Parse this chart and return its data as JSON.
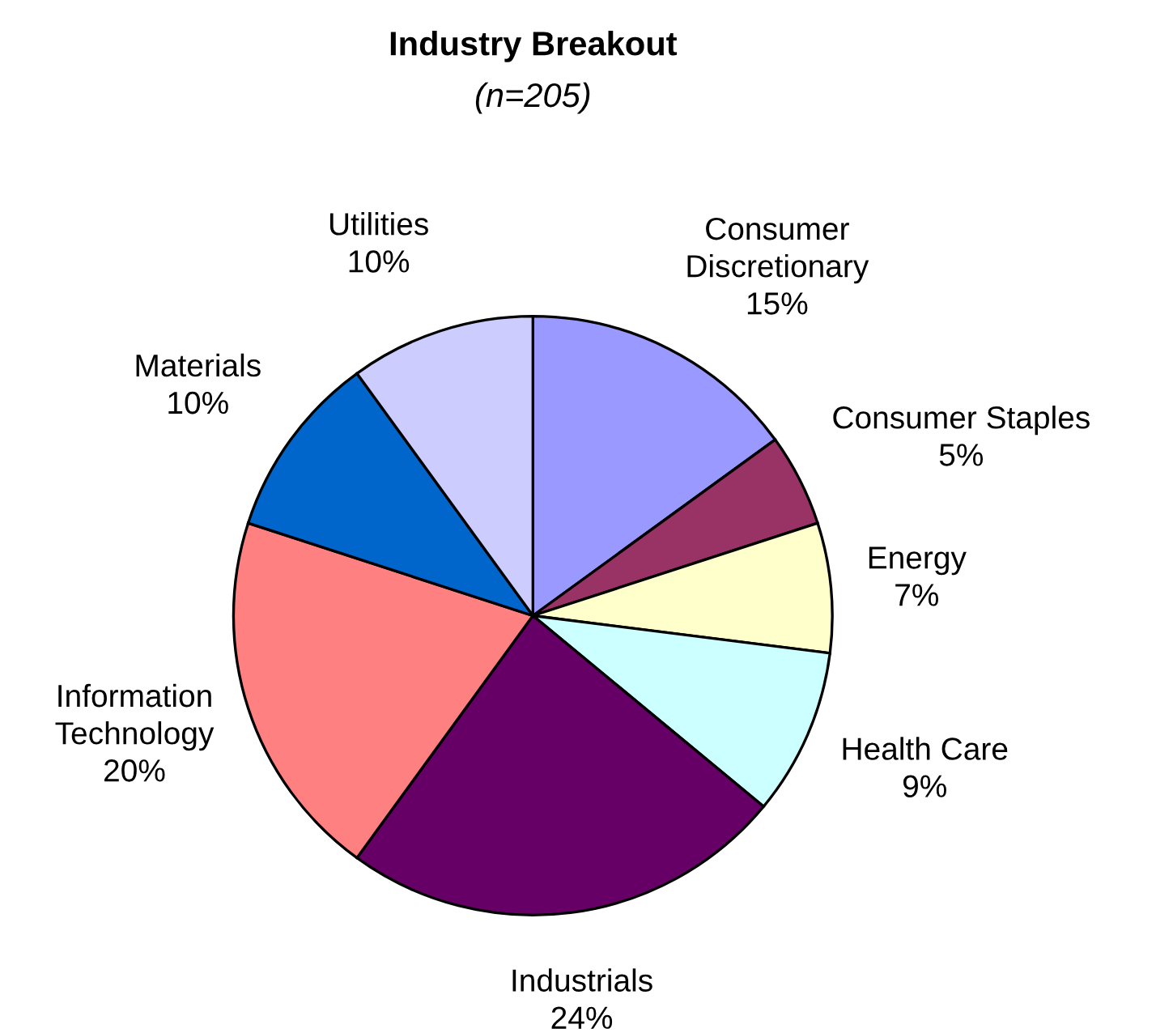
{
  "chart_data": {
    "type": "pie",
    "title": "Industry Breakout",
    "subtitle": "(n=205)",
    "categories": [
      "Consumer\nDiscretionary",
      "Consumer Staples",
      "Energy",
      "Health Care",
      "Industrials",
      "Information\nTechnology",
      "Materials",
      "Utilities"
    ],
    "values": [
      15,
      5,
      7,
      9,
      24,
      20,
      10,
      10
    ],
    "colors": [
      "#9999ff",
      "#993366",
      "#ffffcc",
      "#ccffff",
      "#660066",
      "#ff8080",
      "#0066cc",
      "#ccccff"
    ],
    "value_labels": [
      "15%",
      "5%",
      "7%",
      "9%",
      "24%",
      "20%",
      "10%",
      "10%"
    ],
    "legend": false
  }
}
